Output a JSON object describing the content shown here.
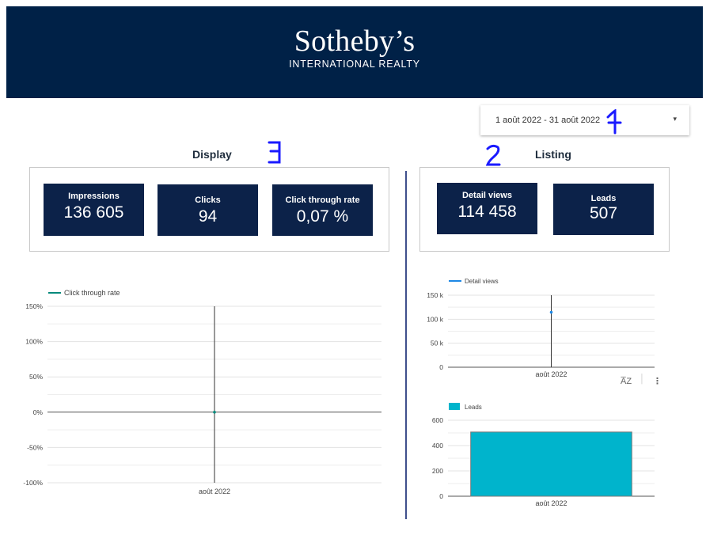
{
  "header": {
    "logo_main": "Sotheby’s",
    "logo_sub": "INTERNATIONAL REALTY",
    "background": "#002147"
  },
  "date_range": {
    "value": "1 août 2022 - 31 août 2022",
    "caret_icon": "caret-down-icon"
  },
  "sections": {
    "display_title": "Display",
    "listing_title": "Listing"
  },
  "display_kpis": [
    {
      "label": "Impressions",
      "value": "136 605"
    },
    {
      "label": "Clicks",
      "value": "94"
    },
    {
      "label": "Click through rate",
      "value": "0,07 %"
    }
  ],
  "listing_kpis": [
    {
      "label": "Detail views",
      "value": "114 458"
    },
    {
      "label": "Leads",
      "value": "507"
    }
  ],
  "annotations": {
    "mark_1": "1",
    "mark_2": "2",
    "mark_3": "3",
    "color": "#1a1aff"
  },
  "chart_toolbar": {
    "sort_icon": "sort-az-icon",
    "more_icon": "more-vert-icon"
  },
  "chart_data": [
    {
      "type": "line",
      "legend": [
        "Click through rate"
      ],
      "series": [
        {
          "name": "Click through rate",
          "x": [
            "août 2022"
          ],
          "values": [
            0.07
          ],
          "color": "#00897b"
        }
      ],
      "y_ticks": [
        "150%",
        "100%",
        "50%",
        "0%",
        "-50%",
        "-100%"
      ],
      "ylim": [
        -100,
        150
      ],
      "categories": [
        "août 2022"
      ],
      "legend_position": "top-left",
      "grid": true
    },
    {
      "type": "line",
      "legend": [
        "Detail views"
      ],
      "series": [
        {
          "name": "Detail views",
          "x": [
            "août 2022"
          ],
          "values": [
            114458
          ],
          "color": "#1e88e5"
        }
      ],
      "y_ticks": [
        "150 k",
        "100 k",
        "50 k",
        "0"
      ],
      "ylim": [
        0,
        150000
      ],
      "categories": [
        "août 2022"
      ],
      "legend_position": "top-left",
      "grid": true
    },
    {
      "type": "bar",
      "legend": [
        "Leads"
      ],
      "series": [
        {
          "name": "Leads",
          "values": [
            507
          ],
          "color": "#00b4cc"
        }
      ],
      "y_ticks": [
        "600",
        "400",
        "200",
        "0"
      ],
      "ylim": [
        0,
        600
      ],
      "categories": [
        "août 2022"
      ],
      "legend_position": "top-left",
      "grid": true
    }
  ]
}
